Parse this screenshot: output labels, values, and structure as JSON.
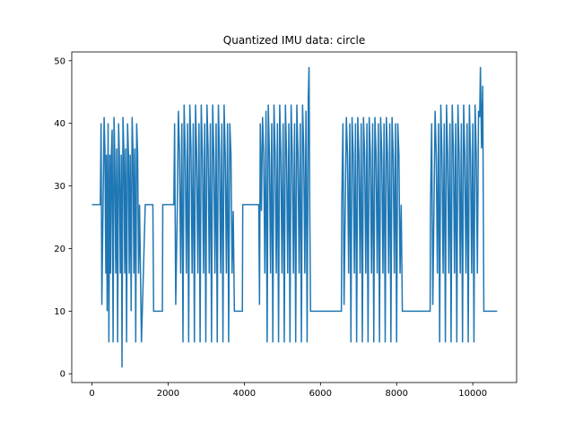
{
  "chart_data": {
    "type": "line",
    "title": "Quantized IMU data: circle",
    "xlabel": "",
    "ylabel": "",
    "xlim": [
      -530,
      11150
    ],
    "ylim": [
      -1.4,
      51.4
    ],
    "x_ticks": [
      0,
      2000,
      4000,
      6000,
      8000,
      10000
    ],
    "y_ticks": [
      0,
      10,
      20,
      30,
      40,
      50
    ],
    "grid": false,
    "line_color": "#1f77b4",
    "series": [
      {
        "values": [
          [
            0,
            27
          ],
          [
            220,
            27
          ],
          [
            240,
            40
          ],
          [
            260,
            11
          ],
          [
            290,
            26
          ],
          [
            320,
            41
          ],
          [
            340,
            36
          ],
          [
            365,
            16
          ],
          [
            380,
            35
          ],
          [
            400,
            10
          ],
          [
            425,
            40
          ],
          [
            445,
            5
          ],
          [
            470,
            35
          ],
          [
            490,
            16
          ],
          [
            510,
            35
          ],
          [
            530,
            39
          ],
          [
            555,
            5
          ],
          [
            580,
            41
          ],
          [
            600,
            35
          ],
          [
            625,
            16
          ],
          [
            650,
            36
          ],
          [
            675,
            5
          ],
          [
            700,
            40
          ],
          [
            720,
            35
          ],
          [
            745,
            16
          ],
          [
            770,
            35
          ],
          [
            790,
            1
          ],
          [
            815,
            41
          ],
          [
            840,
            35
          ],
          [
            860,
            16
          ],
          [
            885,
            36
          ],
          [
            910,
            5
          ],
          [
            935,
            40
          ],
          [
            960,
            35
          ],
          [
            980,
            16
          ],
          [
            1005,
            35
          ],
          [
            1030,
            10
          ],
          [
            1055,
            41
          ],
          [
            1080,
            35
          ],
          [
            1100,
            16
          ],
          [
            1125,
            36
          ],
          [
            1150,
            5
          ],
          [
            1175,
            40
          ],
          [
            1200,
            35
          ],
          [
            1225,
            16
          ],
          [
            1250,
            27
          ],
          [
            1300,
            5
          ],
          [
            1400,
            27
          ],
          [
            1600,
            27
          ],
          [
            1620,
            10
          ],
          [
            1850,
            10
          ],
          [
            1860,
            27
          ],
          [
            2150,
            27
          ],
          [
            2170,
            40
          ],
          [
            2200,
            11
          ],
          [
            2240,
            26
          ],
          [
            2270,
            42
          ],
          [
            2300,
            35
          ],
          [
            2330,
            16
          ],
          [
            2360,
            40
          ],
          [
            2390,
            5
          ],
          [
            2420,
            43
          ],
          [
            2450,
            35
          ],
          [
            2480,
            16
          ],
          [
            2510,
            40
          ],
          [
            2540,
            5
          ],
          [
            2570,
            43
          ],
          [
            2600,
            36
          ],
          [
            2630,
            16
          ],
          [
            2660,
            40
          ],
          [
            2690,
            5
          ],
          [
            2720,
            43
          ],
          [
            2750,
            35
          ],
          [
            2780,
            16
          ],
          [
            2810,
            40
          ],
          [
            2840,
            5
          ],
          [
            2870,
            43
          ],
          [
            2900,
            35
          ],
          [
            2930,
            16
          ],
          [
            2960,
            40
          ],
          [
            2990,
            5
          ],
          [
            3020,
            43
          ],
          [
            3050,
            36
          ],
          [
            3080,
            16
          ],
          [
            3110,
            40
          ],
          [
            3140,
            5
          ],
          [
            3170,
            43
          ],
          [
            3200,
            35
          ],
          [
            3230,
            16
          ],
          [
            3260,
            40
          ],
          [
            3290,
            5
          ],
          [
            3320,
            43
          ],
          [
            3350,
            35
          ],
          [
            3380,
            16
          ],
          [
            3410,
            40
          ],
          [
            3440,
            5
          ],
          [
            3470,
            43
          ],
          [
            3500,
            35
          ],
          [
            3530,
            16
          ],
          [
            3560,
            40
          ],
          [
            3590,
            5
          ],
          [
            3620,
            40
          ],
          [
            3650,
            35
          ],
          [
            3680,
            16
          ],
          [
            3710,
            26
          ],
          [
            3740,
            10
          ],
          [
            3950,
            10
          ],
          [
            3960,
            27
          ],
          [
            4380,
            27
          ],
          [
            4400,
            11
          ],
          [
            4420,
            40
          ],
          [
            4450,
            26
          ],
          [
            4480,
            41
          ],
          [
            4510,
            35
          ],
          [
            4540,
            16
          ],
          [
            4570,
            42
          ],
          [
            4600,
            5
          ],
          [
            4630,
            43
          ],
          [
            4660,
            35
          ],
          [
            4690,
            16
          ],
          [
            4720,
            40
          ],
          [
            4750,
            5
          ],
          [
            4780,
            43
          ],
          [
            4810,
            35
          ],
          [
            4840,
            16
          ],
          [
            4870,
            40
          ],
          [
            4900,
            5
          ],
          [
            4930,
            43
          ],
          [
            4960,
            35
          ],
          [
            4990,
            16
          ],
          [
            5020,
            40
          ],
          [
            5050,
            5
          ],
          [
            5080,
            43
          ],
          [
            5110,
            35
          ],
          [
            5140,
            16
          ],
          [
            5170,
            40
          ],
          [
            5200,
            5
          ],
          [
            5230,
            43
          ],
          [
            5260,
            35
          ],
          [
            5290,
            16
          ],
          [
            5320,
            40
          ],
          [
            5350,
            5
          ],
          [
            5380,
            43
          ],
          [
            5410,
            35
          ],
          [
            5440,
            16
          ],
          [
            5470,
            40
          ],
          [
            5500,
            5
          ],
          [
            5530,
            43
          ],
          [
            5560,
            36
          ],
          [
            5590,
            16
          ],
          [
            5620,
            42
          ],
          [
            5650,
            5
          ],
          [
            5680,
            44
          ],
          [
            5700,
            49
          ],
          [
            5720,
            26
          ],
          [
            5740,
            10
          ],
          [
            6550,
            10
          ],
          [
            6560,
            27
          ],
          [
            6590,
            40
          ],
          [
            6620,
            11
          ],
          [
            6650,
            26
          ],
          [
            6680,
            41
          ],
          [
            6710,
            35
          ],
          [
            6740,
            16
          ],
          [
            6770,
            40
          ],
          [
            6800,
            5
          ],
          [
            6830,
            41
          ],
          [
            6860,
            35
          ],
          [
            6890,
            16
          ],
          [
            6920,
            40
          ],
          [
            6950,
            5
          ],
          [
            6980,
            41
          ],
          [
            7010,
            35
          ],
          [
            7040,
            16
          ],
          [
            7070,
            40
          ],
          [
            7100,
            5
          ],
          [
            7130,
            41
          ],
          [
            7160,
            35
          ],
          [
            7190,
            16
          ],
          [
            7220,
            40
          ],
          [
            7250,
            5
          ],
          [
            7280,
            41
          ],
          [
            7310,
            35
          ],
          [
            7340,
            16
          ],
          [
            7370,
            40
          ],
          [
            7400,
            5
          ],
          [
            7430,
            41
          ],
          [
            7460,
            35
          ],
          [
            7490,
            16
          ],
          [
            7520,
            40
          ],
          [
            7550,
            5
          ],
          [
            7580,
            41
          ],
          [
            7610,
            35
          ],
          [
            7640,
            16
          ],
          [
            7670,
            40
          ],
          [
            7700,
            5
          ],
          [
            7730,
            41
          ],
          [
            7760,
            35
          ],
          [
            7790,
            16
          ],
          [
            7820,
            40
          ],
          [
            7850,
            5
          ],
          [
            7880,
            41
          ],
          [
            7910,
            35
          ],
          [
            7940,
            16
          ],
          [
            7970,
            40
          ],
          [
            8000,
            5
          ],
          [
            8030,
            40
          ],
          [
            8060,
            35
          ],
          [
            8090,
            16
          ],
          [
            8120,
            27
          ],
          [
            8150,
            10
          ],
          [
            8880,
            10
          ],
          [
            8890,
            27
          ],
          [
            8920,
            40
          ],
          [
            8950,
            11
          ],
          [
            8980,
            26
          ],
          [
            9010,
            42
          ],
          [
            9040,
            35
          ],
          [
            9070,
            16
          ],
          [
            9100,
            40
          ],
          [
            9130,
            5
          ],
          [
            9160,
            43
          ],
          [
            9190,
            35
          ],
          [
            9220,
            16
          ],
          [
            9250,
            40
          ],
          [
            9280,
            5
          ],
          [
            9310,
            43
          ],
          [
            9340,
            35
          ],
          [
            9370,
            16
          ],
          [
            9400,
            40
          ],
          [
            9430,
            5
          ],
          [
            9460,
            43
          ],
          [
            9490,
            36
          ],
          [
            9520,
            16
          ],
          [
            9550,
            40
          ],
          [
            9580,
            5
          ],
          [
            9610,
            43
          ],
          [
            9640,
            35
          ],
          [
            9670,
            16
          ],
          [
            9700,
            40
          ],
          [
            9730,
            5
          ],
          [
            9760,
            43
          ],
          [
            9790,
            35
          ],
          [
            9820,
            16
          ],
          [
            9850,
            40
          ],
          [
            9880,
            5
          ],
          [
            9910,
            43
          ],
          [
            9940,
            35
          ],
          [
            9970,
            16
          ],
          [
            10000,
            40
          ],
          [
            10030,
            5
          ],
          [
            10060,
            43
          ],
          [
            10090,
            35
          ],
          [
            10120,
            16
          ],
          [
            10150,
            42
          ],
          [
            10180,
            41
          ],
          [
            10200,
            49
          ],
          [
            10230,
            36
          ],
          [
            10260,
            46
          ],
          [
            10290,
            10
          ],
          [
            10640,
            10
          ]
        ]
      }
    ]
  }
}
